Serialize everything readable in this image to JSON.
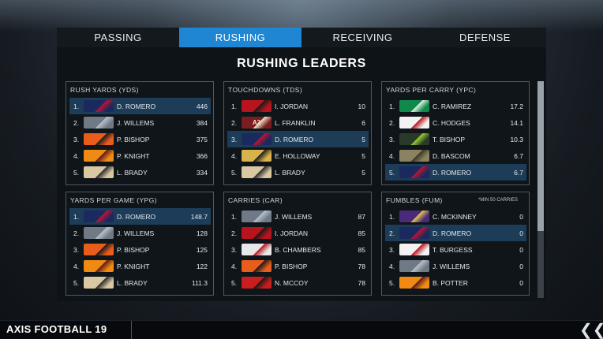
{
  "colors": {
    "accent": "#1e86d2",
    "highlight_row": "#1d3c58",
    "panel_border": "#4e5863",
    "background": "#0e1318"
  },
  "tabs": [
    {
      "label": "PASSING",
      "active": false
    },
    {
      "label": "RUSHING",
      "active": true
    },
    {
      "label": "RECEIVING",
      "active": false
    },
    {
      "label": "DEFENSE",
      "active": false
    }
  ],
  "main": {
    "title": "RUSHING LEADERS"
  },
  "footer": {
    "brand": "AXIS FOOTBALL 19",
    "back_icon": "double-chevron-left-icon"
  },
  "team_logos": {
    "navy": {
      "icon": "navy-wing-logo-icon",
      "bg": "#1a2a5e",
      "fg": "#c8102e"
    },
    "silver": {
      "icon": "silver-tile-logo-icon",
      "bg": "#6f7a86",
      "fg": "#b9c2cc"
    },
    "orange": {
      "icon": "orange-bird-logo-icon",
      "bg": "#e85c1c",
      "fg": "#1a1a1a"
    },
    "flame": {
      "icon": "flame-logo-icon",
      "bg": "#f08a12",
      "fg": "#5a1a1a"
    },
    "tan": {
      "icon": "tan-creature-logo-icon",
      "bg": "#d9c8a2",
      "fg": "#2a2a2a"
    },
    "red": {
      "icon": "red-mask-logo-icon",
      "bg": "#b8141e",
      "fg": "#1a1a1a"
    },
    "a2": {
      "icon": "a2-logo-icon",
      "bg": "#7a1c20",
      "fg": "#f2e6c8",
      "text": "A2"
    },
    "gold": {
      "icon": "gold-pirate-logo-icon",
      "bg": "#d8b24a",
      "fg": "#1a1a1a"
    },
    "green": {
      "icon": "green-hawk-logo-icon",
      "bg": "#0f8a4a",
      "fg": "#e6f0e6"
    },
    "crest": {
      "icon": "red-crest-logo-icon",
      "bg": "#f2f2f2",
      "fg": "#b8141e"
    },
    "lime": {
      "icon": "lime-bird-logo-icon",
      "bg": "#2a3a2a",
      "fg": "#9ad12a"
    },
    "olive": {
      "icon": "olive-block-logo-icon",
      "bg": "#8a8260",
      "fg": "#3a3626"
    },
    "purple": {
      "icon": "purple-lion-logo-icon",
      "bg": "#4a2a7a",
      "fg": "#e6c84a"
    },
    "white": {
      "icon": "white-creature-logo-icon",
      "bg": "#e8e8e8",
      "fg": "#b8141e"
    },
    "darkred": {
      "icon": "dark-red-logo-icon",
      "bg": "#c81e1e",
      "fg": "#1a1a1a"
    }
  },
  "panels": [
    {
      "title": "RUSH YARDS (YDS)",
      "rows": [
        {
          "rank": "1.",
          "logo": "navy",
          "name": "D. ROMERO",
          "value": "446",
          "highlight": true
        },
        {
          "rank": "2.",
          "logo": "silver",
          "name": "J. WILLEMS",
          "value": "384",
          "highlight": false
        },
        {
          "rank": "3.",
          "logo": "orange",
          "name": "P. BISHOP",
          "value": "375",
          "highlight": false
        },
        {
          "rank": "4.",
          "logo": "flame",
          "name": "P. KNIGHT",
          "value": "366",
          "highlight": false
        },
        {
          "rank": "5.",
          "logo": "tan",
          "name": "L. BRADY",
          "value": "334",
          "highlight": false
        }
      ]
    },
    {
      "title": "TOUCHDOWNS (TDS)",
      "rows": [
        {
          "rank": "1.",
          "logo": "red",
          "name": "I. JORDAN",
          "value": "10",
          "highlight": false
        },
        {
          "rank": "2.",
          "logo": "a2",
          "name": "L. FRANKLIN",
          "value": "6",
          "highlight": false
        },
        {
          "rank": "3.",
          "logo": "navy",
          "name": "D. ROMERO",
          "value": "5",
          "highlight": true
        },
        {
          "rank": "4.",
          "logo": "gold",
          "name": "E. HOLLOWAY",
          "value": "5",
          "highlight": false
        },
        {
          "rank": "5.",
          "logo": "tan",
          "name": "L. BRADY",
          "value": "5",
          "highlight": false
        }
      ]
    },
    {
      "title": "YARDS PER CARRY (YPC)",
      "rows": [
        {
          "rank": "1.",
          "logo": "green",
          "name": "C. RAMIREZ",
          "value": "17.2",
          "highlight": false
        },
        {
          "rank": "2.",
          "logo": "crest",
          "name": "C. HODGES",
          "value": "14.1",
          "highlight": false
        },
        {
          "rank": "3.",
          "logo": "lime",
          "name": "T. BISHOP",
          "value": "10.3",
          "highlight": false
        },
        {
          "rank": "4.",
          "logo": "olive",
          "name": "D. BASCOM",
          "value": "6.7",
          "highlight": false
        },
        {
          "rank": "5.",
          "logo": "navy",
          "name": "D. ROMERO",
          "value": "6.7",
          "highlight": true
        }
      ]
    },
    {
      "title": "YARDS PER GAME (YPG)",
      "rows": [
        {
          "rank": "1.",
          "logo": "navy",
          "name": "D. ROMERO",
          "value": "148.7",
          "highlight": true
        },
        {
          "rank": "2.",
          "logo": "silver",
          "name": "J. WILLEMS",
          "value": "128",
          "highlight": false
        },
        {
          "rank": "3.",
          "logo": "orange",
          "name": "P. BISHOP",
          "value": "125",
          "highlight": false
        },
        {
          "rank": "4.",
          "logo": "flame",
          "name": "P. KNIGHT",
          "value": "122",
          "highlight": false
        },
        {
          "rank": "5.",
          "logo": "tan",
          "name": "L. BRADY",
          "value": "111.3",
          "highlight": false
        }
      ]
    },
    {
      "title": "CARRIES (CAR)",
      "rows": [
        {
          "rank": "1.",
          "logo": "silver",
          "name": "J. WILLEMS",
          "value": "87",
          "highlight": false
        },
        {
          "rank": "2.",
          "logo": "red",
          "name": "I. JORDAN",
          "value": "85",
          "highlight": false
        },
        {
          "rank": "3.",
          "logo": "white",
          "name": "B. CHAMBERS",
          "value": "85",
          "highlight": false
        },
        {
          "rank": "4.",
          "logo": "orange",
          "name": "P. BISHOP",
          "value": "78",
          "highlight": false
        },
        {
          "rank": "5.",
          "logo": "darkred",
          "name": "N. MCCOY",
          "value": "78",
          "highlight": false
        }
      ]
    },
    {
      "title": "FUMBLES (FUM)",
      "note": "*MIN 50 CARRIES",
      "rows": [
        {
          "rank": "1.",
          "logo": "purple",
          "name": "C. MCKINNEY",
          "value": "0",
          "highlight": false
        },
        {
          "rank": "2.",
          "logo": "navy",
          "name": "D. ROMERO",
          "value": "0",
          "highlight": true
        },
        {
          "rank": "3.",
          "logo": "crest",
          "name": "T. BURGESS",
          "value": "0",
          "highlight": false
        },
        {
          "rank": "4.",
          "logo": "silver",
          "name": "J. WILLEMS",
          "value": "0",
          "highlight": false
        },
        {
          "rank": "5.",
          "logo": "flame",
          "name": "B. POTTER",
          "value": "0",
          "highlight": false
        }
      ]
    }
  ]
}
